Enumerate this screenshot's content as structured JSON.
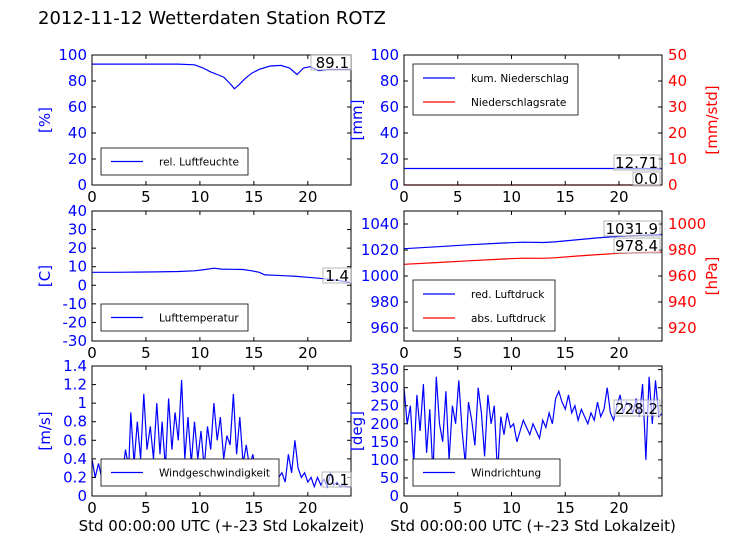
{
  "page": {
    "title": "2012-11-12 Wetterdaten Station ROTZ"
  },
  "chart_data": [
    {
      "id": "humidity",
      "type": "line",
      "xlim": [
        0,
        24
      ],
      "ylim": [
        0,
        100
      ],
      "x_ticks": [
        0,
        5,
        10,
        15,
        20
      ],
      "y_ticks": [
        0,
        20,
        40,
        60,
        80,
        100
      ],
      "ylabel": "[%]",
      "ylabel_color": "#0000ff",
      "legend": {
        "placement": "lower-left",
        "entries": [
          "rel. Luftfeuchte"
        ]
      },
      "annotations": [
        "89.1"
      ],
      "series": [
        {
          "name": "rel. Luftfeuchte",
          "color": "#0000ff",
          "axis": "left",
          "x": [
            0,
            2,
            4,
            6,
            8,
            9.5,
            10.3,
            11,
            11.6,
            12.2,
            12.8,
            13.2,
            13.6,
            14.2,
            14.8,
            15.5,
            16.5,
            17.5,
            18.3,
            19,
            19.6,
            20.2,
            21,
            22,
            23,
            24
          ],
          "y": [
            93,
            93,
            93,
            93,
            93,
            92.5,
            90,
            87,
            85,
            83,
            78,
            74,
            77,
            82,
            86,
            89,
            91.5,
            92,
            90,
            85,
            90,
            91,
            88,
            89,
            89,
            89
          ]
        }
      ]
    },
    {
      "id": "precipitation",
      "type": "line",
      "xlim": [
        0,
        24
      ],
      "ylim": [
        0,
        100
      ],
      "ylim_right": [
        0,
        50
      ],
      "x_ticks": [
        0,
        5,
        10,
        15,
        20
      ],
      "y_ticks": [
        0,
        20,
        40,
        60,
        80,
        100
      ],
      "y_ticks_right": [
        0,
        10,
        20,
        30,
        40,
        50
      ],
      "ylabel": "[mm]",
      "ylabel_color": "#0000ff",
      "ylabel_right": "[mm/std]",
      "ylabel_right_color": "#ff0000",
      "legend": {
        "placement": "upper-left",
        "entries": [
          "kum. Niederschlag",
          "Niederschlagsrate"
        ]
      },
      "annotations": [
        "12.71",
        "0.0"
      ],
      "series": [
        {
          "name": "kum. Niederschlag",
          "color": "#0000ff",
          "axis": "left",
          "x": [
            0,
            24
          ],
          "y": [
            12.71,
            12.71
          ]
        },
        {
          "name": "Niederschlagsrate",
          "color": "#ff0000",
          "axis": "right",
          "x": [
            0,
            24
          ],
          "y": [
            0,
            0
          ]
        }
      ]
    },
    {
      "id": "temperature",
      "type": "line",
      "xlim": [
        0,
        24
      ],
      "ylim": [
        -30,
        40
      ],
      "x_ticks": [
        0,
        5,
        10,
        15,
        20
      ],
      "y_ticks": [
        -30,
        -20,
        -10,
        0,
        10,
        20,
        30,
        40
      ],
      "ylabel": "[C]",
      "ylabel_color": "#0000ff",
      "legend": {
        "placement": "lower-left",
        "entries": [
          "Lufttemperatur"
        ]
      },
      "annotations": [
        "1.4"
      ],
      "series": [
        {
          "name": "Lufttemperatur",
          "color": "#0000ff",
          "axis": "left",
          "x": [
            0,
            2,
            4,
            6,
            8,
            9.5,
            10.5,
            11.3,
            12,
            13,
            14,
            14.8,
            15.5,
            16,
            17,
            18,
            19,
            20,
            21,
            22,
            23,
            24
          ],
          "y": [
            7,
            7,
            7.1,
            7.2,
            7.4,
            7.8,
            8.5,
            9.2,
            8.7,
            8.6,
            8.5,
            7.8,
            7,
            5.6,
            5.4,
            5.1,
            4.8,
            4.3,
            3.8,
            3.2,
            2.4,
            1.4
          ]
        }
      ]
    },
    {
      "id": "pressure",
      "type": "line",
      "xlim": [
        0,
        24
      ],
      "ylim": [
        950,
        1050
      ],
      "ylim_right": [
        910,
        1010
      ],
      "x_ticks": [
        0,
        5,
        10,
        15,
        20
      ],
      "y_ticks": [
        960,
        980,
        1000,
        1020,
        1040
      ],
      "y_ticks_right": [
        920,
        940,
        960,
        980,
        1000
      ],
      "ylabel": "",
      "ylabel_right": "[hPa]",
      "ylabel_right_color": "#ff0000",
      "legend": {
        "placement": "lower-left",
        "entries": [
          "red. Luftdruck",
          "abs. Luftdruck"
        ]
      },
      "annotations": [
        "1031.9",
        "978.4"
      ],
      "series": [
        {
          "name": "red. Luftdruck",
          "color": "#0000ff",
          "axis": "left",
          "x": [
            0,
            3,
            6,
            9,
            11,
            13,
            14,
            16,
            18,
            20,
            22,
            24
          ],
          "y": [
            1021,
            1022.5,
            1024,
            1025.3,
            1026,
            1025.8,
            1026.2,
            1027.8,
            1029.3,
            1030.5,
            1031.3,
            1031.9
          ]
        },
        {
          "name": "abs. Luftdruck",
          "color": "#ff0000",
          "axis": "right",
          "x": [
            0,
            3,
            6,
            9,
            11,
            13,
            14,
            16,
            18,
            20,
            22,
            24
          ],
          "y": [
            969,
            970.3,
            971.7,
            973,
            973.7,
            973.6,
            974,
            975.3,
            976.5,
            977.5,
            978.1,
            978.4
          ]
        }
      ]
    },
    {
      "id": "wind-speed",
      "type": "line",
      "xlim": [
        0,
        24
      ],
      "ylim": [
        0,
        1.4
      ],
      "x_ticks": [
        0,
        5,
        10,
        15,
        20
      ],
      "y_ticks": [
        0,
        0.2,
        0.4,
        0.6,
        0.8,
        1.0,
        1.2,
        1.4
      ],
      "ylabel": "[m/s]",
      "ylabel_color": "#0000ff",
      "xlabel": "Std 00:00:00 UTC (+-23 Std Lokalzeit)",
      "legend": {
        "placement": "lower-left",
        "entries": [
          "Windgeschwindigkeit"
        ]
      },
      "annotations": [
        "0.1"
      ],
      "series": [
        {
          "name": "Windgeschwindigkeit",
          "color": "#0000ff",
          "axis": "left",
          "x": [
            0,
            0.3,
            0.6,
            1,
            1.4,
            1.8,
            2.2,
            2.5,
            2.8,
            3.1,
            3.4,
            3.6,
            3.9,
            4.2,
            4.5,
            4.8,
            5.1,
            5.4,
            5.7,
            6,
            6.3,
            6.5,
            6.8,
            7.1,
            7.4,
            7.7,
            8,
            8.3,
            8.6,
            8.9,
            9.2,
            9.5,
            9.8,
            10.1,
            10.4,
            10.7,
            11,
            11.3,
            11.6,
            11.9,
            12.2,
            12.5,
            12.8,
            13.1,
            13.4,
            13.7,
            14,
            14.3,
            14.6,
            14.9,
            15.2,
            15.5,
            15.8,
            16.1,
            16.4,
            16.7,
            17,
            17.3,
            17.6,
            17.9,
            18.2,
            18.5,
            18.8,
            19.1,
            19.4,
            19.7,
            20,
            20.3,
            20.6,
            20.9,
            21.2,
            21.5,
            21.8,
            22.1,
            22.4,
            22.7,
            23,
            23.3,
            23.6,
            24
          ],
          "y": [
            0.4,
            0.2,
            0.35,
            0.15,
            0.3,
            0.2,
            0.25,
            0.4,
            0.2,
            0.5,
            0.3,
            0.9,
            0.35,
            0.8,
            0.4,
            1.1,
            0.5,
            0.75,
            0.4,
            1.0,
            0.45,
            0.8,
            0.3,
            1.05,
            0.5,
            0.9,
            0.6,
            1.25,
            0.4,
            0.85,
            0.35,
            0.8,
            0.4,
            0.7,
            0.3,
            0.75,
            0.5,
            1.0,
            0.6,
            0.85,
            0.4,
            0.65,
            0.55,
            1.1,
            0.45,
            0.85,
            0.35,
            0.55,
            0.3,
            0.45,
            0.25,
            0.35,
            0.2,
            0.3,
            0.2,
            0.25,
            0.3,
            0.2,
            0.25,
            0.15,
            0.45,
            0.25,
            0.6,
            0.3,
            0.2,
            0.25,
            0.15,
            0.2,
            0.1,
            0.2,
            0.12,
            0.18,
            0.1,
            0.25,
            0.12,
            0.15,
            0.1,
            0.12,
            0.1,
            0.1
          ]
        }
      ]
    },
    {
      "id": "wind-direction",
      "type": "line",
      "xlim": [
        0,
        24
      ],
      "ylim": [
        0,
        360
      ],
      "x_ticks": [
        0,
        5,
        10,
        15,
        20
      ],
      "y_ticks": [
        0,
        50,
        100,
        150,
        200,
        250,
        300,
        350
      ],
      "ylabel": "[deg]",
      "ylabel_color": "#0000ff",
      "xlabel": "Std 00:00:00 UTC (+-23 Std Lokalzeit)",
      "legend": {
        "placement": "lower-left",
        "entries": [
          "Windrichtung"
        ]
      },
      "annotations": [
        "228.2"
      ],
      "series": [
        {
          "name": "Windrichtung",
          "color": "#0000ff",
          "axis": "left",
          "x": [
            0,
            0.3,
            0.6,
            0.9,
            1.2,
            1.5,
            1.8,
            2.1,
            2.4,
            2.7,
            3,
            3.3,
            3.6,
            3.9,
            4.2,
            4.5,
            4.8,
            5.1,
            5.4,
            5.7,
            6,
            6.3,
            6.6,
            6.9,
            7.2,
            7.5,
            7.8,
            8.1,
            8.4,
            8.7,
            9,
            9.3,
            9.6,
            9.9,
            10.2,
            10.5,
            10.8,
            11.1,
            11.4,
            11.7,
            12,
            12.3,
            12.6,
            12.9,
            13.2,
            13.5,
            13.8,
            14.1,
            14.4,
            14.7,
            15,
            15.3,
            15.6,
            15.9,
            16.2,
            16.5,
            16.8,
            17.1,
            17.4,
            17.7,
            18,
            18.3,
            18.6,
            18.9,
            19.2,
            19.5,
            19.8,
            20.1,
            20.4,
            20.7,
            21,
            21.3,
            21.6,
            21.9,
            22.2,
            22.5,
            22.8,
            23.1,
            23.4,
            23.7,
            24
          ],
          "y": [
            300,
            200,
            250,
            90,
            280,
            180,
            310,
            120,
            240,
            60,
            330,
            200,
            150,
            290,
            100,
            250,
            200,
            320,
            180,
            90,
            260,
            210,
            140,
            300,
            230,
            110,
            280,
            200,
            250,
            60,
            220,
            170,
            230,
            190,
            200,
            150,
            180,
            210,
            190,
            170,
            200,
            180,
            160,
            210,
            190,
            230,
            200,
            270,
            290,
            260,
            240,
            280,
            230,
            250,
            210,
            240,
            220,
            200,
            230,
            210,
            260,
            220,
            240,
            300,
            230,
            210,
            250,
            280,
            230,
            260,
            250,
            230,
            270,
            220,
            310,
            100,
            330,
            200,
            320,
            220,
            228
          ]
        }
      ]
    }
  ]
}
